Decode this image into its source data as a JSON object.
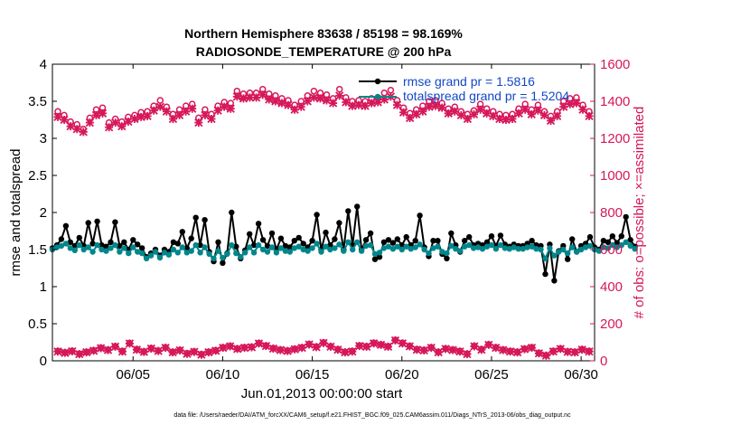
{
  "colors": {
    "rmse": "#000000",
    "spread": "#00868b",
    "obs": "#d6175a",
    "legend_text": "#1447c8",
    "axis": "#000000"
  },
  "chart_data": {
    "type": "line",
    "title": [
      "Northern Hemisphere 83638 / 85198 = 98.169%",
      "RADIOSONDE_TEMPERATURE @ 200 hPa"
    ],
    "xlabel": "Jun.01,2013 00:00:00 start",
    "ylabel_left": "rmse and totalspread",
    "ylabel_right": "# of obs: o=possible; ×=assimilated",
    "x_range": [
      0.5,
      30.75
    ],
    "x_ticks": [
      5,
      10,
      15,
      20,
      25,
      30
    ],
    "x_tick_labels": [
      "06/05",
      "06/10",
      "06/15",
      "06/20",
      "06/25",
      "06/30"
    ],
    "ylim_left": [
      0,
      4
    ],
    "y_ticks_left": [
      0,
      0.5,
      1,
      1.5,
      2,
      2.5,
      3,
      3.5,
      4
    ],
    "y_tick_labels_left": [
      "0",
      "0.5",
      "1",
      "1.5",
      "2",
      "2.5",
      "3",
      "3.5",
      "4"
    ],
    "ylim_right": [
      0,
      1600
    ],
    "y_ticks_right": [
      0,
      200,
      400,
      600,
      800,
      1000,
      1200,
      1400,
      1600
    ],
    "y_tick_labels_right": [
      "0",
      "200",
      "400",
      "600",
      "800",
      "1000",
      "1200",
      "1400",
      "1600"
    ],
    "legend": [
      {
        "name": "rmse grand pr = 1.5816",
        "marker": "filled-circle"
      },
      {
        "name": "totalspread grand pr = 1.5204",
        "marker": "filled-circle"
      }
    ],
    "x_start": 0.5,
    "x_step": 0.25,
    "series": [
      {
        "name": "rmse",
        "axis": "left",
        "values": [
          1.52,
          1.56,
          1.64,
          1.82,
          1.6,
          1.55,
          1.66,
          1.55,
          1.86,
          1.58,
          1.88,
          1.56,
          1.54,
          1.6,
          1.87,
          1.55,
          1.6,
          1.5,
          1.63,
          1.57,
          1.52,
          1.4,
          1.45,
          1.5,
          1.42,
          1.5,
          1.47,
          1.6,
          1.58,
          1.74,
          1.52,
          1.65,
          1.93,
          1.56,
          1.9,
          1.47,
          1.34,
          1.6,
          1.32,
          1.45,
          2.0,
          1.54,
          1.38,
          1.49,
          1.71,
          1.56,
          1.85,
          1.63,
          1.55,
          1.72,
          1.5,
          1.65,
          1.55,
          1.53,
          1.62,
          1.66,
          1.58,
          1.53,
          1.62,
          1.97,
          1.5,
          1.73,
          1.56,
          1.64,
          1.86,
          1.5,
          2.02,
          1.56,
          2.08,
          1.5,
          1.63,
          1.72,
          1.37,
          1.4,
          1.6,
          1.63,
          1.59,
          1.64,
          1.56,
          1.67,
          1.56,
          1.62,
          1.96,
          1.53,
          1.41,
          1.62,
          1.62,
          1.44,
          1.38,
          1.72,
          1.56,
          1.47,
          1.62,
          1.67,
          1.56,
          1.58,
          1.56,
          1.6,
          1.68,
          1.55,
          1.69,
          1.57,
          1.54,
          1.57,
          1.55,
          1.55,
          1.58,
          1.62,
          1.56,
          1.55,
          1.17,
          1.57,
          1.08,
          1.48,
          1.55,
          1.37,
          1.64,
          1.47,
          1.55,
          1.58,
          1.67,
          1.53,
          1.5,
          1.62,
          1.6,
          1.68,
          1.59,
          1.68,
          1.94,
          1.63,
          1.54
        ]
      },
      {
        "name": "totalspread",
        "axis": "left",
        "values": [
          1.5,
          1.53,
          1.55,
          1.58,
          1.52,
          1.49,
          1.56,
          1.5,
          1.53,
          1.47,
          1.56,
          1.5,
          1.48,
          1.52,
          1.56,
          1.47,
          1.52,
          1.45,
          1.53,
          1.47,
          1.45,
          1.38,
          1.42,
          1.47,
          1.39,
          1.46,
          1.43,
          1.5,
          1.46,
          1.53,
          1.46,
          1.48,
          1.56,
          1.46,
          1.53,
          1.44,
          1.38,
          1.48,
          1.39,
          1.44,
          1.56,
          1.45,
          1.4,
          1.46,
          1.53,
          1.46,
          1.56,
          1.5,
          1.47,
          1.53,
          1.46,
          1.52,
          1.48,
          1.47,
          1.52,
          1.54,
          1.5,
          1.48,
          1.52,
          1.58,
          1.47,
          1.54,
          1.5,
          1.52,
          1.57,
          1.48,
          1.6,
          1.5,
          1.6,
          1.48,
          1.55,
          1.56,
          1.44,
          1.46,
          1.52,
          1.54,
          1.51,
          1.54,
          1.5,
          1.54,
          1.51,
          1.53,
          1.57,
          1.5,
          1.45,
          1.52,
          1.54,
          1.47,
          1.45,
          1.55,
          1.51,
          1.48,
          1.54,
          1.56,
          1.52,
          1.53,
          1.51,
          1.54,
          1.56,
          1.51,
          1.56,
          1.52,
          1.51,
          1.53,
          1.51,
          1.51,
          1.53,
          1.54,
          1.51,
          1.5,
          1.38,
          1.52,
          1.42,
          1.47,
          1.5,
          1.45,
          1.53,
          1.47,
          1.5,
          1.53,
          1.55,
          1.5,
          1.48,
          1.53,
          1.52,
          1.56,
          1.53,
          1.56,
          1.6,
          1.55,
          1.51
        ]
      },
      {
        "name": "obs possible",
        "axis": "right",
        "values": [
          1345,
          1325,
          1290,
          1275,
          1250,
          1310,
          1355,
          1365,
          1285,
          1305,
          1290,
          1315,
          1325,
          1340,
          1345,
          1375,
          1405,
          1370,
          1330,
          1355,
          1375,
          1385,
          1310,
          1355,
          1330,
          1375,
          1395,
          1390,
          1455,
          1440,
          1445,
          1445,
          1465,
          1440,
          1430,
          1415,
          1405,
          1380,
          1400,
          1430,
          1455,
          1445,
          1435,
          1415,
          1465,
          1420,
          1400,
          1405,
          1400,
          1415,
          1420,
          1445,
          1460,
          1405,
          1365,
          1335,
          1355,
          1375,
          1400,
          1405,
          1390,
          1360,
          1370,
          1345,
          1330,
          1350,
          1385,
          1360,
          1345,
          1330,
          1325,
          1330,
          1360,
          1385,
          1355,
          1380,
          1345,
          1320,
          1345,
          1400,
          1415,
          1420,
          1380,
          1345
        ]
      },
      {
        "name": "obs assimilated",
        "axis": "right",
        "values": [
          1315,
          1300,
          1265,
          1250,
          1235,
          1285,
          1325,
          1335,
          1260,
          1285,
          1265,
          1290,
          1305,
          1315,
          1320,
          1350,
          1370,
          1345,
          1305,
          1325,
          1345,
          1360,
          1285,
          1325,
          1305,
          1350,
          1370,
          1360,
          1425,
          1415,
          1420,
          1420,
          1435,
          1410,
          1400,
          1390,
          1380,
          1355,
          1370,
          1400,
          1420,
          1415,
          1405,
          1390,
          1430,
          1395,
          1375,
          1380,
          1375,
          1390,
          1395,
          1410,
          1425,
          1380,
          1340,
          1310,
          1330,
          1345,
          1370,
          1375,
          1365,
          1335,
          1345,
          1325,
          1305,
          1330,
          1355,
          1335,
          1320,
          1305,
          1300,
          1305,
          1335,
          1355,
          1330,
          1350,
          1325,
          1295,
          1320,
          1370,
          1385,
          1390,
          1355,
          1320
        ]
      },
      {
        "name": "obs low possible",
        "axis": "right",
        "values": [
          52,
          45,
          53,
          38,
          48,
          56,
          70,
          60,
          78,
          52,
          95,
          62,
          50,
          68,
          55,
          72,
          48,
          58,
          40,
          50,
          35,
          48,
          56,
          72,
          80,
          66,
          72,
          75,
          95,
          82,
          68,
          60,
          55,
          64,
          72,
          90,
          76,
          98,
          78,
          62,
          48,
          52,
          82,
          78,
          96,
          88,
          78,
          112,
          96,
          80,
          62,
          58,
          72,
          48,
          66,
          60,
          52,
          38,
          80,
          62,
          88,
          72,
          60,
          52,
          48,
          65,
          72,
          42,
          30,
          52,
          66,
          50,
          48,
          62,
          52
        ]
      },
      {
        "name": "obs low assimilated",
        "axis": "right",
        "values": [
          50,
          43,
          51,
          36,
          46,
          54,
          68,
          58,
          76,
          50,
          93,
          60,
          48,
          66,
          53,
          70,
          46,
          56,
          38,
          48,
          33,
          46,
          54,
          70,
          78,
          64,
          70,
          73,
          93,
          80,
          66,
          58,
          53,
          62,
          70,
          88,
          74,
          96,
          76,
          60,
          46,
          50,
          80,
          76,
          94,
          86,
          76,
          110,
          94,
          78,
          60,
          56,
          70,
          46,
          64,
          58,
          50,
          36,
          78,
          60,
          86,
          70,
          58,
          50,
          46,
          63,
          70,
          40,
          28,
          50,
          64,
          48,
          46,
          60,
          50
        ]
      }
    ]
  },
  "footer": "data file: /Users/raeder/DAI/ATM_forcXX/CAM6_setup/f.e21.FHIST_BGC.f09_025.CAM6assim.011/Diags_NTrS_2013-06/obs_diag_output.nc"
}
